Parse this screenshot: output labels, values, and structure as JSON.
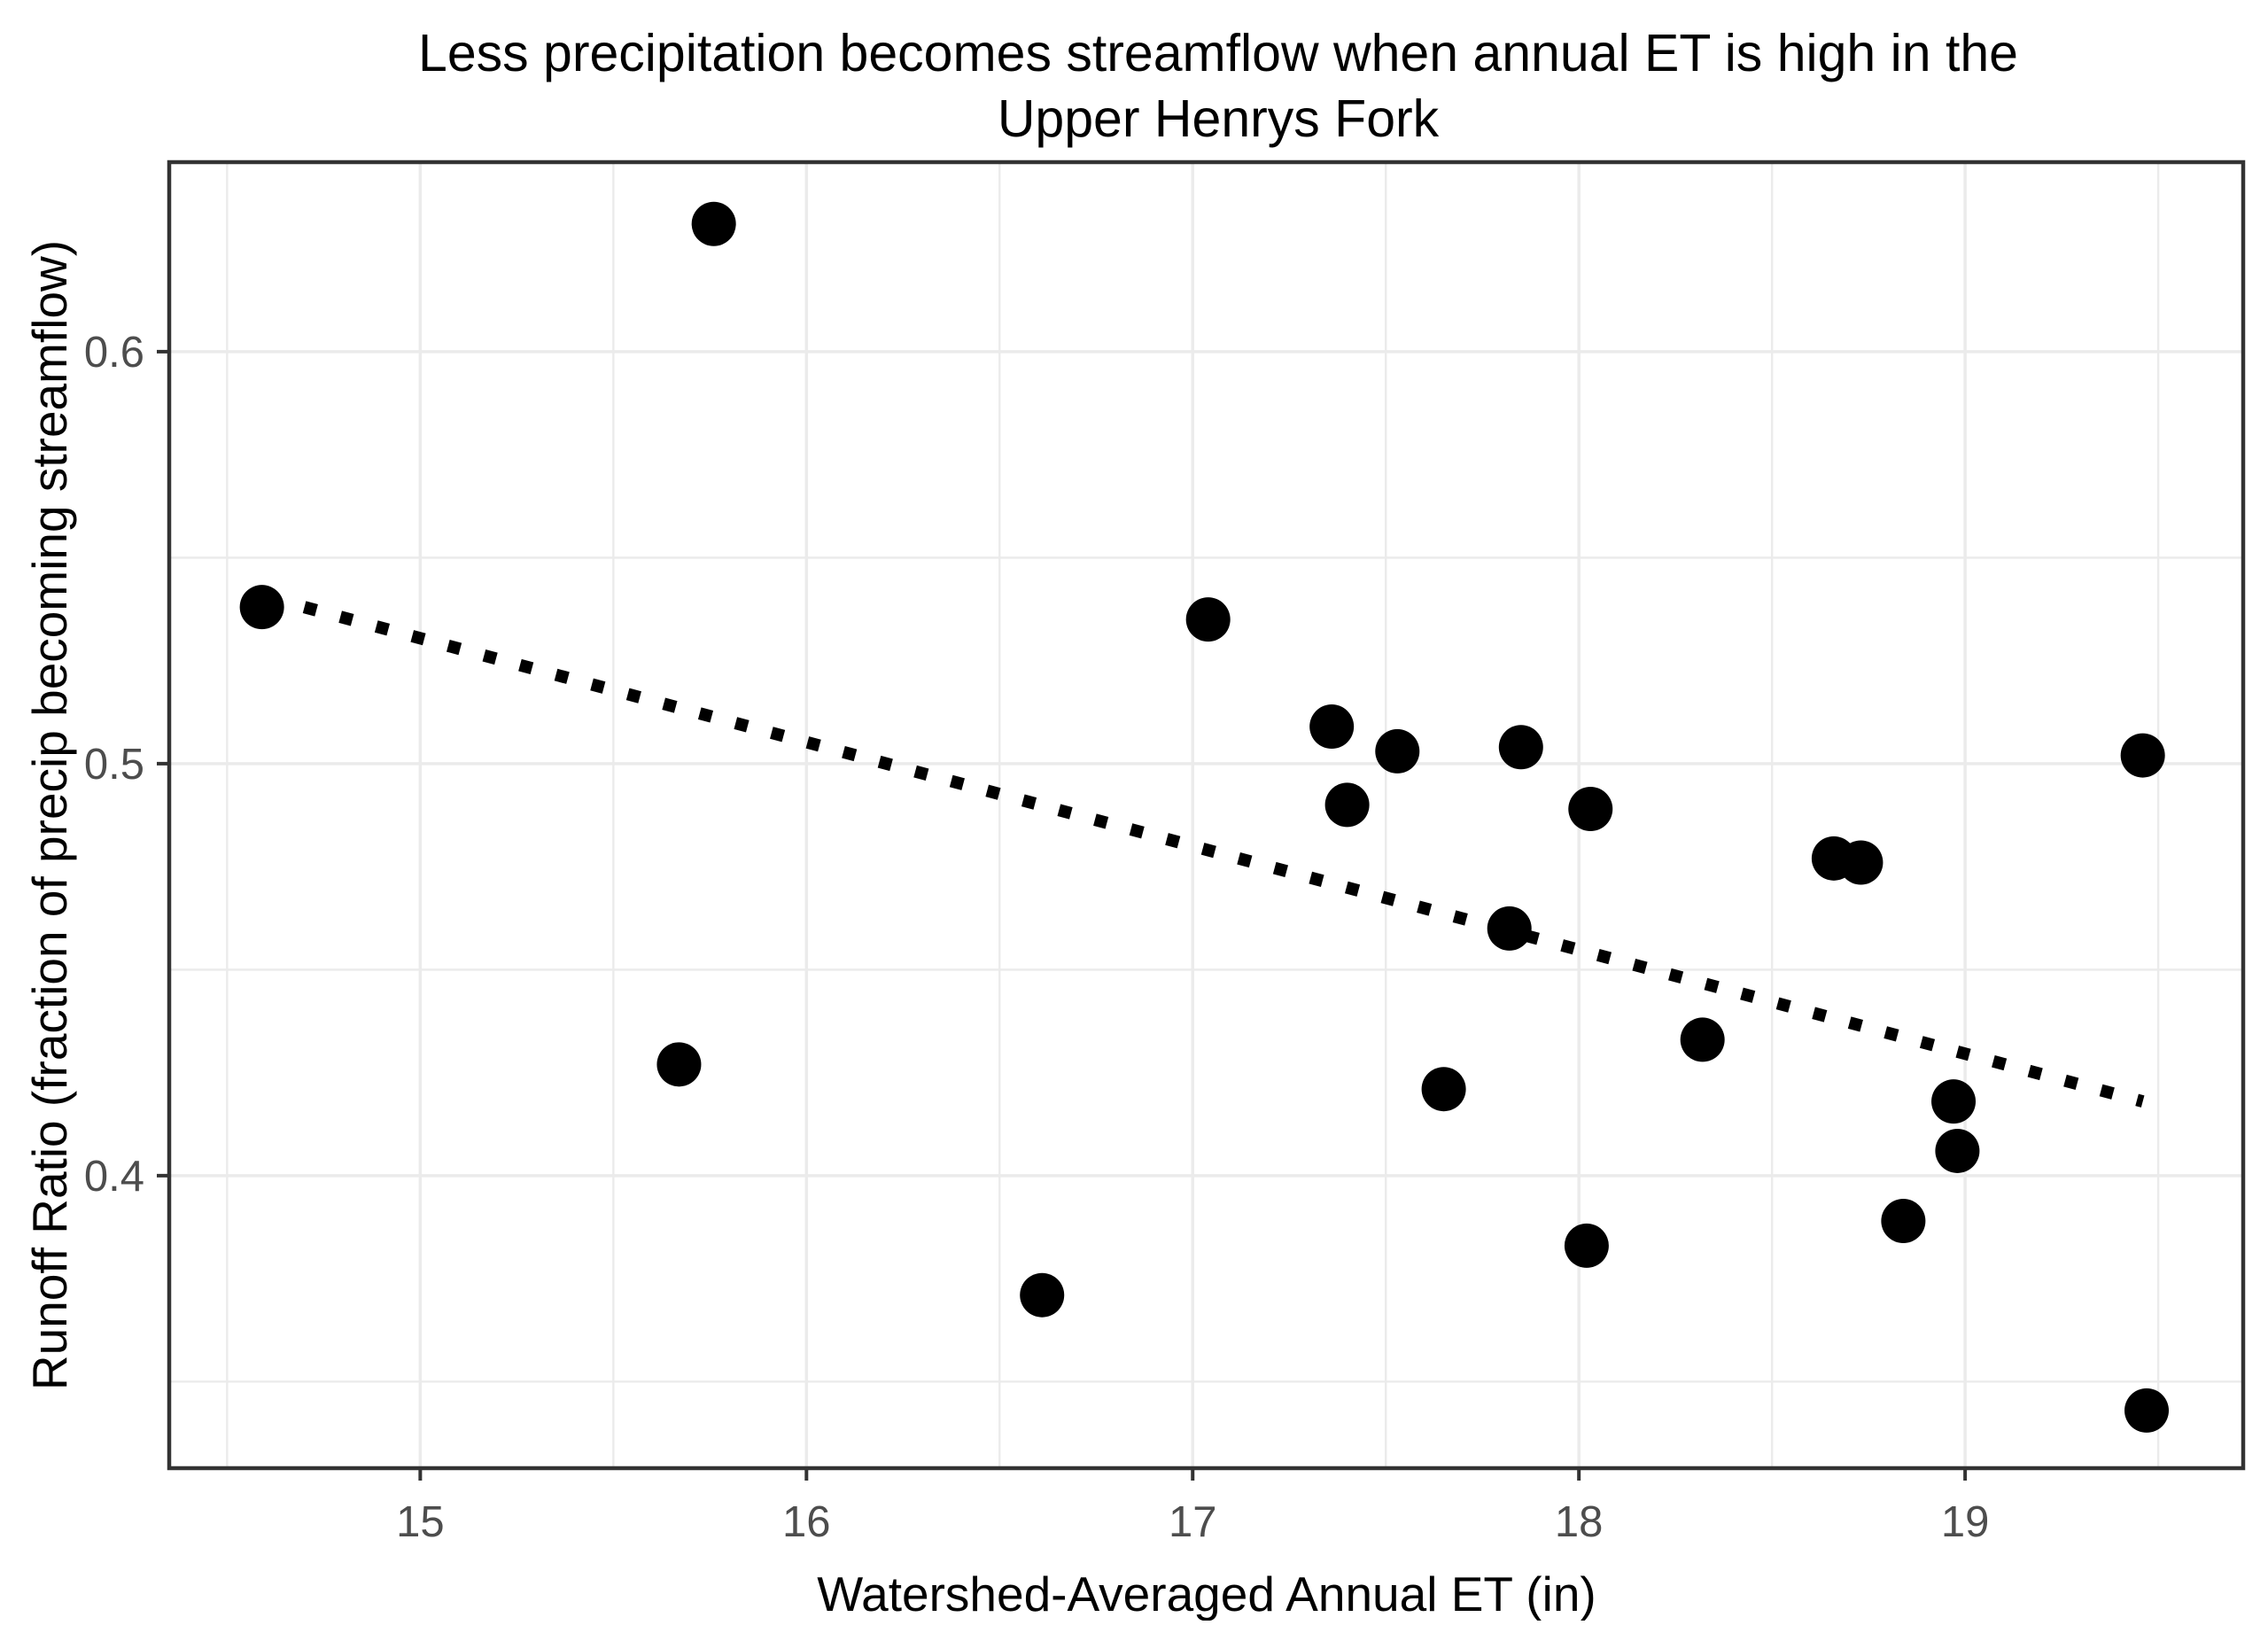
{
  "chart_data": {
    "type": "scatter",
    "title": "Less precipitation becomes streamflow when annual ET is high in the Upper Henrys Fork",
    "title_line1": "Less precipitation becomes streamflow when annual ET is high in the",
    "title_line2": "Upper Henrys Fork",
    "xlabel": "Watershed-Averaged Annual ET (in)",
    "ylabel": "Runoff Ratio (fraction of precip becoming streamflow)",
    "xlim": [
      14.35,
      19.72
    ],
    "ylim": [
      0.329,
      0.646
    ],
    "x_major_ticks": [
      15,
      16,
      17,
      18,
      19
    ],
    "x_tick_labels": [
      "15",
      "16",
      "17",
      "18",
      "19"
    ],
    "x_minor_ticks": [
      14.5,
      15.5,
      16.5,
      17.5,
      18.5,
      19.5
    ],
    "y_major_ticks": [
      0.4,
      0.5,
      0.6
    ],
    "y_tick_labels": [
      "0.4",
      "0.5",
      "0.6"
    ],
    "y_minor_ticks": [
      0.35,
      0.45,
      0.55
    ],
    "grid": true,
    "legend_position": "none",
    "points": [
      {
        "x": 14.59,
        "y": 0.538
      },
      {
        "x": 15.67,
        "y": 0.427
      },
      {
        "x": 15.76,
        "y": 0.631
      },
      {
        "x": 16.61,
        "y": 0.371
      },
      {
        "x": 17.04,
        "y": 0.535
      },
      {
        "x": 17.36,
        "y": 0.509
      },
      {
        "x": 17.4,
        "y": 0.49
      },
      {
        "x": 17.53,
        "y": 0.503
      },
      {
        "x": 17.65,
        "y": 0.421
      },
      {
        "x": 17.82,
        "y": 0.46
      },
      {
        "x": 17.85,
        "y": 0.504
      },
      {
        "x": 18.02,
        "y": 0.383
      },
      {
        "x": 18.03,
        "y": 0.489
      },
      {
        "x": 18.32,
        "y": 0.433
      },
      {
        "x": 18.66,
        "y": 0.477
      },
      {
        "x": 18.73,
        "y": 0.476
      },
      {
        "x": 18.84,
        "y": 0.389
      },
      {
        "x": 18.97,
        "y": 0.418
      },
      {
        "x": 18.98,
        "y": 0.406
      },
      {
        "x": 19.46,
        "y": 0.502
      },
      {
        "x": 19.47,
        "y": 0.343
      }
    ],
    "trend_line": {
      "style": "dotted",
      "x1": 14.7,
      "y1": 0.538,
      "x2": 19.46,
      "y2": 0.418
    },
    "colors": {
      "point": "#000000",
      "trend": "#000000",
      "grid_line": "#ebebeb",
      "panel_border": "#333333",
      "tick_mark": "#333333",
      "tick_label": "#4d4d4d",
      "text": "#000000",
      "background": "#ffffff"
    }
  }
}
